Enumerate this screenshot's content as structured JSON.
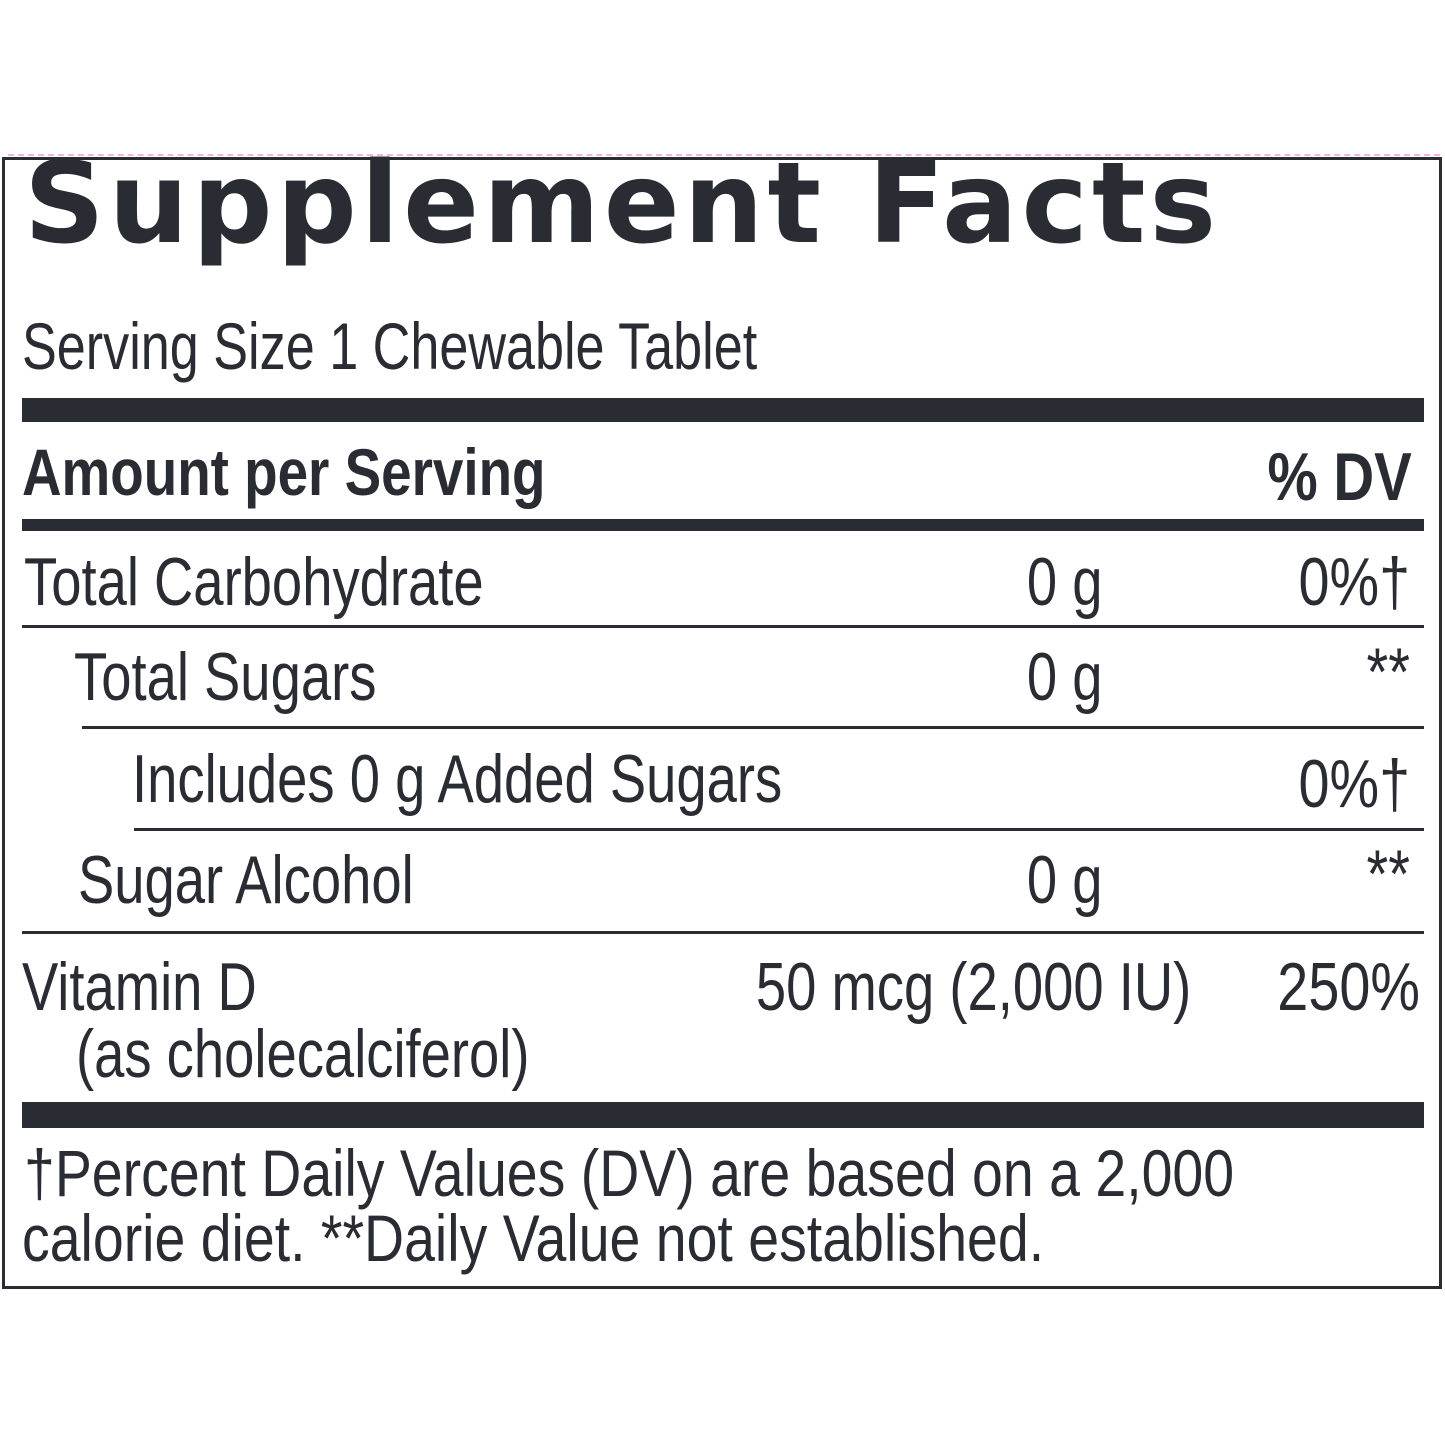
{
  "panel": {
    "title": "Supplement Facts",
    "serving_size": "Serving Size 1 Chewable Tablet",
    "header": {
      "amount_label": "Amount per Serving",
      "dv_label": "% DV"
    },
    "rows": [
      {
        "name": "Total Carbohydrate",
        "amount": "0 g",
        "dv": "0%†"
      },
      {
        "name": "Total Sugars",
        "amount": "0 g",
        "dv": "**"
      },
      {
        "name": "Includes 0 g Added Sugars",
        "amount": "",
        "dv": "0%†"
      },
      {
        "name": "Sugar Alcohol",
        "amount": "0 g",
        "dv": "**"
      },
      {
        "name": "Vitamin D",
        "name_sub": "(as cholecalciferol)",
        "amount": "50 mcg (2,000 IU)",
        "dv": "250%"
      }
    ],
    "footnote_line1": "†Percent Daily Values (DV) are based on a 2,000",
    "footnote_line2": "calorie diet. **Daily Value not established."
  },
  "colors": {
    "ink": "#2a2c33",
    "accent_dashed_line": "#f2b8d2"
  }
}
